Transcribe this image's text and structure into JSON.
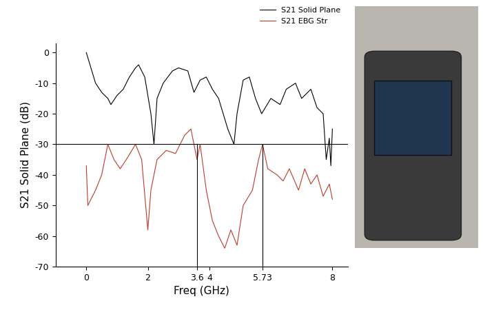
{
  "chart_data": {
    "type": "line",
    "x_label": "Freq (GHz)",
    "y_label": "S21 Solid Plane (dB)",
    "series": [
      {
        "name": "S21 Solid Plane",
        "color": "#000000",
        "x": [
          0,
          0.3,
          0.5,
          0.7,
          0.8,
          1.0,
          1.2,
          1.4,
          1.6,
          1.7,
          1.9,
          2.1,
          2.2,
          2.3,
          2.5,
          2.8,
          3.0,
          3.3,
          3.5,
          3.7,
          3.9,
          4.1,
          4.3,
          4.6,
          4.8,
          4.9,
          5.1,
          5.3,
          5.5,
          5.7,
          6.0,
          6.3,
          6.5,
          6.8,
          7.0,
          7.3,
          7.5,
          7.7,
          7.8,
          7.9,
          7.95,
          8.0
        ],
        "values": [
          0,
          -10,
          -13,
          -15,
          -17,
          -14,
          -12,
          -8,
          -5,
          -4,
          -8,
          -20,
          -30,
          -15,
          -10,
          -6,
          -5,
          -6,
          -13,
          -9,
          -8,
          -12,
          -15,
          -25,
          -30,
          -20,
          -9,
          -8,
          -15,
          -20,
          -15,
          -17,
          -12,
          -10,
          -15,
          -12,
          -18,
          -20,
          -35,
          -28,
          -37,
          -25
        ]
      },
      {
        "name": "S21 EBG Str",
        "color": "#c0392b",
        "x": [
          0,
          0.05,
          0.15,
          0.3,
          0.5,
          0.7,
          0.9,
          1.1,
          1.3,
          1.6,
          1.8,
          2.0,
          2.1,
          2.3,
          2.6,
          2.9,
          3.2,
          3.4,
          3.6,
          3.7,
          3.9,
          4.1,
          4.3,
          4.5,
          4.7,
          4.9,
          5.1,
          5.4,
          5.6,
          5.73,
          5.9,
          6.2,
          6.4,
          6.6,
          6.9,
          7.1,
          7.3,
          7.5,
          7.7,
          7.9,
          8.0
        ],
        "values": [
          -37,
          -50,
          -48,
          -45,
          -40,
          -30,
          -35,
          -38,
          -35,
          -30,
          -35,
          -58,
          -45,
          -35,
          -32,
          -33,
          -27,
          -25,
          -35,
          -30,
          -45,
          -55,
          -60,
          -64,
          -58,
          -63,
          -50,
          -45,
          -35,
          -30,
          -38,
          -40,
          -42,
          -38,
          -45,
          -38,
          -43,
          -40,
          -47,
          -43,
          -48
        ]
      }
    ],
    "reference_lines": {
      "y": -30,
      "x": [
        3.6,
        5.73
      ]
    },
    "xlim": [
      -1,
      8.5
    ],
    "ylim": [
      -70,
      3
    ],
    "xticks": [
      0,
      2,
      3.6,
      4,
      5.73,
      8
    ],
    "yticks": [
      0,
      -10,
      -20,
      -30,
      -40,
      -50,
      -60,
      -70
    ],
    "grid": false,
    "legend": "upper right"
  }
}
